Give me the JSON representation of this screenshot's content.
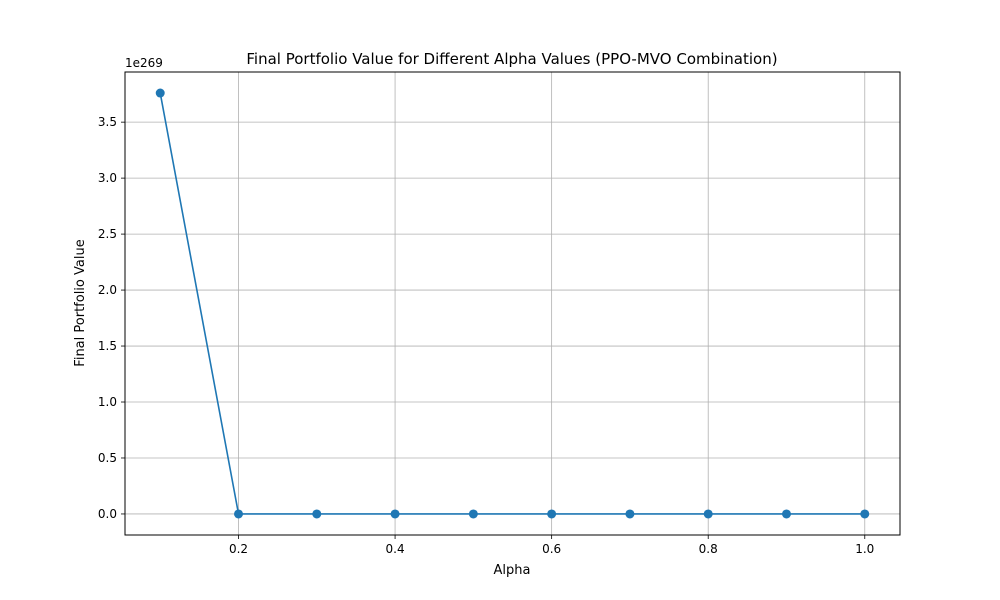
{
  "chart_data": {
    "type": "line",
    "title": "Final Portfolio Value for Different Alpha Values (PPO-MVO Combination)",
    "xlabel": "Alpha",
    "ylabel": "Final Portfolio Value",
    "y_offset_label": "1e269",
    "x": [
      0.1,
      0.2,
      0.3,
      0.4,
      0.5,
      0.6,
      0.7,
      0.8,
      0.9,
      1.0
    ],
    "series": [
      {
        "values": [
          3.76,
          0,
          0,
          0,
          0,
          0,
          0,
          0,
          0,
          0
        ],
        "color": "#1f77b4",
        "marker": "circle"
      }
    ],
    "xlim": [
      0.055,
      1.045
    ],
    "ylim": [
      -0.188,
      3.948
    ],
    "x_ticks": [
      0.2,
      0.4,
      0.6,
      0.8,
      1.0
    ],
    "x_tick_labels": [
      "0.2",
      "0.4",
      "0.6",
      "0.8",
      "1.0"
    ],
    "y_ticks": [
      0.0,
      0.5,
      1.0,
      1.5,
      2.0,
      2.5,
      3.0,
      3.5
    ],
    "y_tick_labels": [
      "0.0",
      "0.5",
      "1.0",
      "1.5",
      "2.0",
      "2.5",
      "3.0",
      "3.5"
    ],
    "grid": true,
    "legend": "none"
  }
}
